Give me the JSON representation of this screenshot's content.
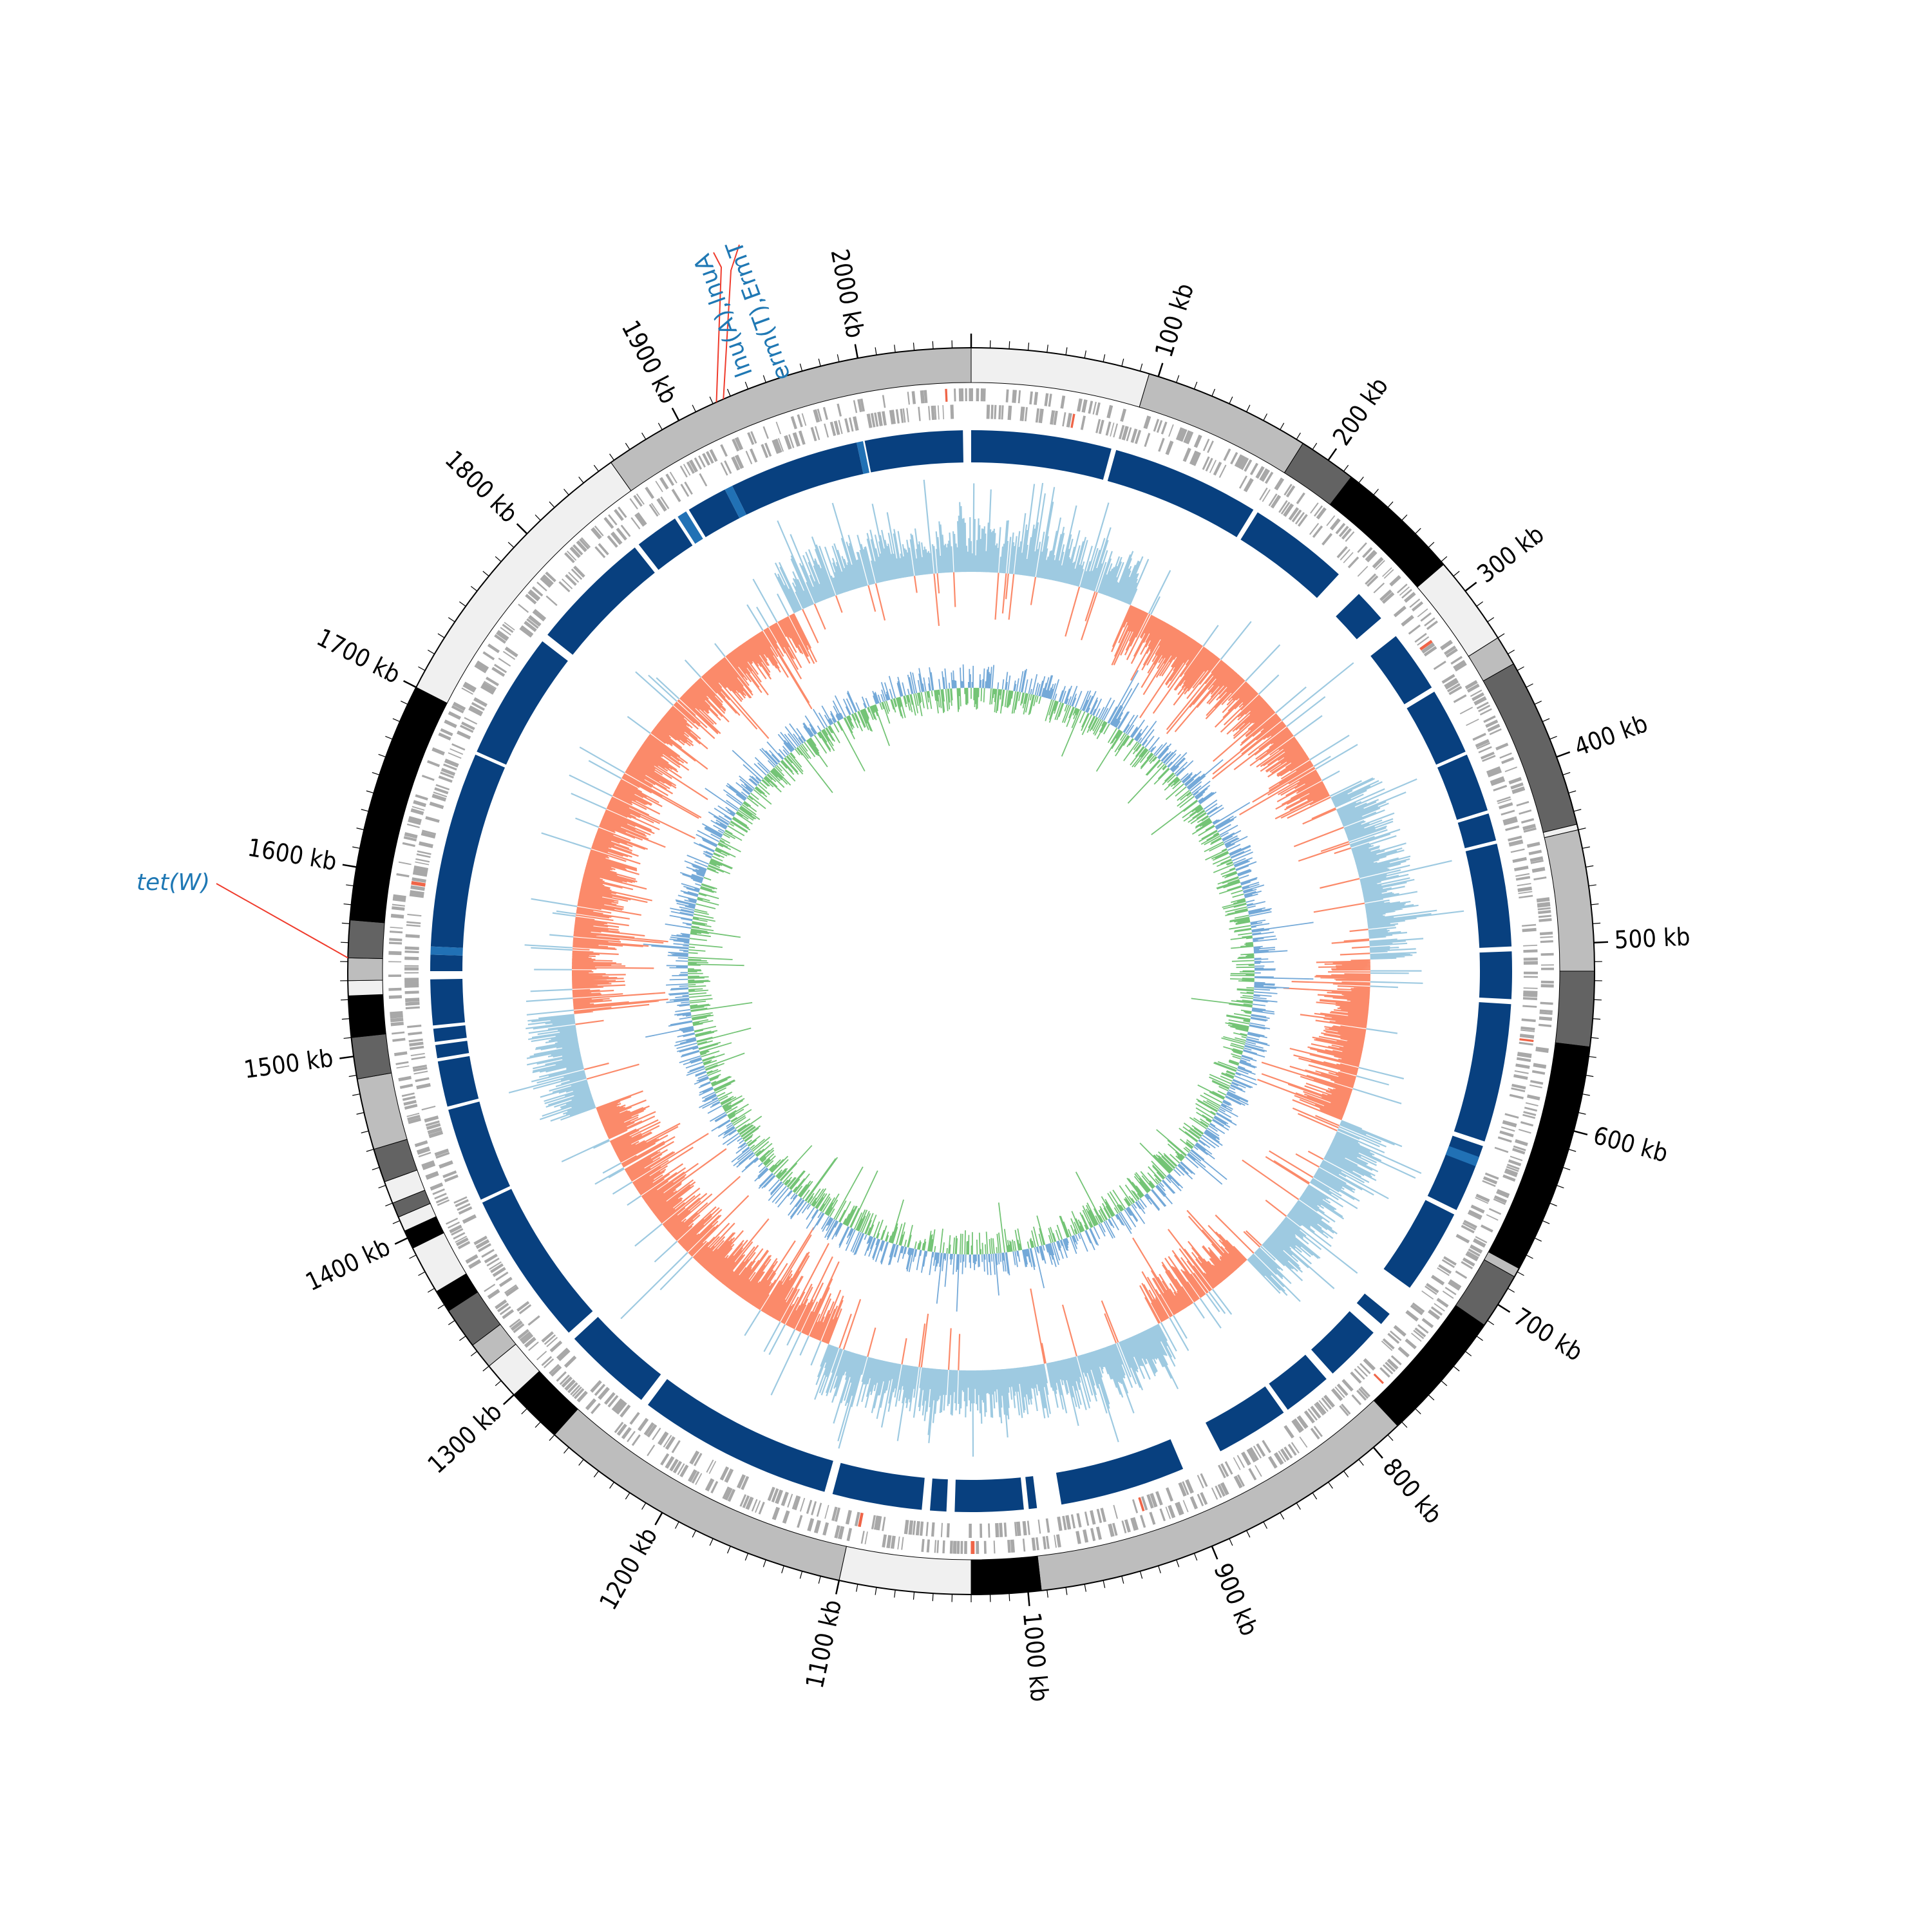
{
  "genome_map": {
    "genome_length_kb": 2060,
    "tick_labels": [
      "100 kb",
      "200 kb",
      "300 kb",
      "400 kb",
      "500 kb",
      "600 kb",
      "700 kb",
      "800 kb",
      "900 kb",
      "1000 kb",
      "1100 kb",
      "1200 kb",
      "1300 kb",
      "1400 kb",
      "1500 kb",
      "1600 kb",
      "1700 kb",
      "1800 kb",
      "1900 kb",
      "2000 kb"
    ],
    "gene_annotations": [
      {
        "label": "erm(T),ErmT",
        "position_kb": 1926
      },
      {
        "label": "lnu(A),lnuA",
        "position_kb": 1922
      },
      {
        "label": "tet(W)",
        "position_kb": 1552
      }
    ],
    "contig_shading": [
      "#bdbdbd",
      "#f0f0f0",
      "#636363",
      "#000000"
    ],
    "tracks": {
      "contigs_ring": "#bdbdbd",
      "cds_color": "#a8a8a8",
      "blast_hits_color": "#08407f",
      "blast_hits_highlight": "#2171b5",
      "gc_skew_positive": "#9ecae1",
      "gc_skew_negative": "#fb8a6a",
      "gc_content_positive": "#74a9d8",
      "gc_content_negative": "#74c476"
    },
    "annotation_line_color": "#ef3b2c"
  }
}
